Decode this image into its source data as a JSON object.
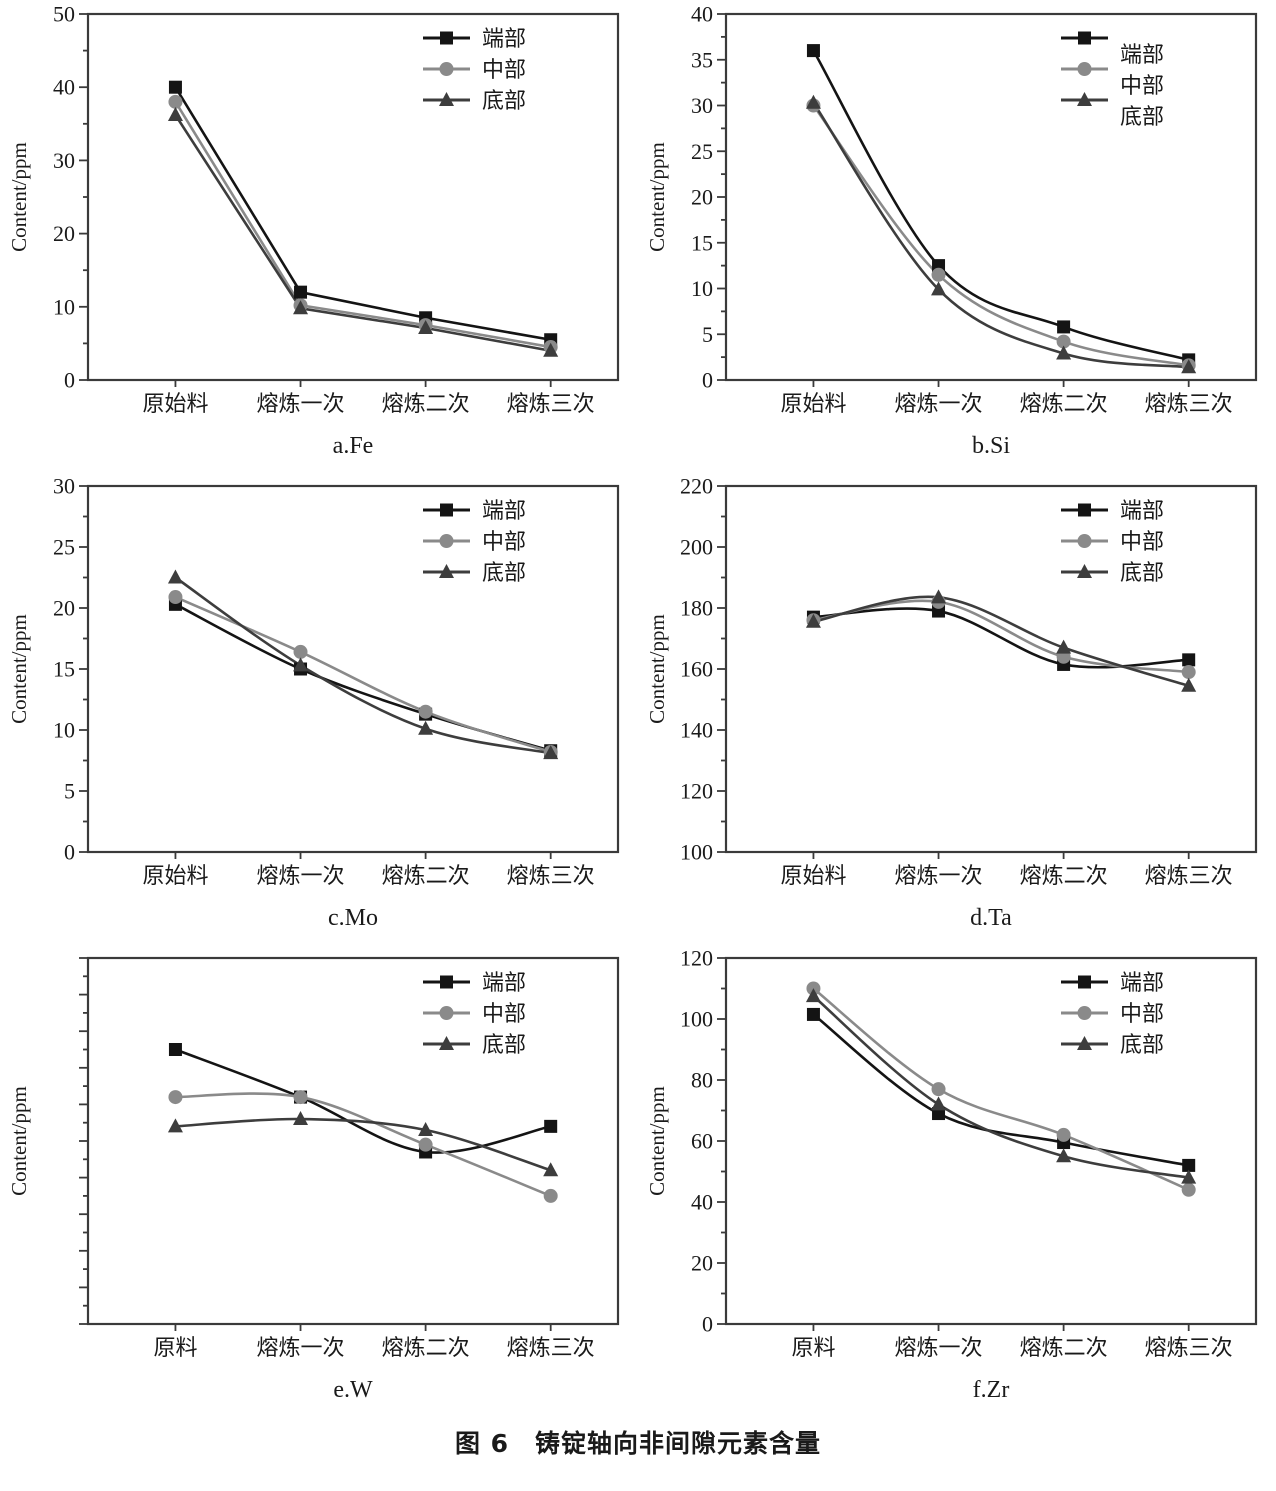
{
  "figure": {
    "caption": "图 6　铸锭轴向非间隙元素含量",
    "ylabel": "Content/ppm",
    "series_colors": {
      "端部": "#141414",
      "中部": "#8a8a8a",
      "底部": "#3d3d3d"
    },
    "series_markers": {
      "端部": "square",
      "中部": "circle",
      "底部": "triangle"
    }
  },
  "chart_data": [
    {
      "id": "a-fe",
      "type": "line",
      "label": "a.Fe",
      "ylabel": "Content/ppm",
      "categories": [
        "原始料",
        "熔炼一次",
        "熔炼二次",
        "熔炼三次"
      ],
      "ylim": [
        0,
        50
      ],
      "ytick_step": 10,
      "yminor_step": 5,
      "show_ytick_labels": true,
      "smooth": false,
      "legend_position": "top-right",
      "legend_label_offset": false,
      "series": [
        {
          "name": "端部",
          "marker": "square",
          "color": "#141414",
          "values": [
            40,
            12,
            8.5,
            5.5
          ]
        },
        {
          "name": "中部",
          "marker": "circle",
          "color": "#8a8a8a",
          "values": [
            38,
            10.2,
            7.5,
            4.5
          ]
        },
        {
          "name": "底部",
          "marker": "triangle",
          "color": "#3d3d3d",
          "values": [
            36.2,
            9.8,
            7.1,
            4.0
          ]
        }
      ]
    },
    {
      "id": "b-si",
      "type": "line",
      "label": "b.Si",
      "ylabel": "Content/ppm",
      "categories": [
        "原始料",
        "熔炼一次",
        "熔炼二次",
        "熔炼三次"
      ],
      "ylim": [
        0,
        40
      ],
      "ytick_step": 5,
      "yminor_step": 2.5,
      "show_ytick_labels": true,
      "smooth": true,
      "legend_position": "top-right",
      "legend_label_offset": true,
      "series": [
        {
          "name": "端部",
          "marker": "square",
          "color": "#141414",
          "values": [
            36,
            12.5,
            5.8,
            2.2
          ]
        },
        {
          "name": "中部",
          "marker": "circle",
          "color": "#8a8a8a",
          "values": [
            30,
            11.5,
            4.2,
            1.6
          ]
        },
        {
          "name": "底部",
          "marker": "triangle",
          "color": "#3d3d3d",
          "values": [
            30.3,
            9.9,
            2.9,
            1.4
          ]
        }
      ]
    },
    {
      "id": "c-mo",
      "type": "line",
      "label": "c.Mo",
      "ylabel": "Content/ppm",
      "categories": [
        "原始料",
        "熔炼一次",
        "熔炼二次",
        "熔炼三次"
      ],
      "ylim": [
        0,
        30
      ],
      "ytick_step": 5,
      "yminor_step": 2.5,
      "show_ytick_labels": true,
      "smooth": true,
      "legend_position": "top-right",
      "legend_label_offset": false,
      "series": [
        {
          "name": "端部",
          "marker": "square",
          "color": "#141414",
          "values": [
            20.3,
            15.0,
            11.3,
            8.3
          ]
        },
        {
          "name": "中部",
          "marker": "circle",
          "color": "#8a8a8a",
          "values": [
            20.9,
            16.4,
            11.5,
            8.2
          ]
        },
        {
          "name": "底部",
          "marker": "triangle",
          "color": "#3d3d3d",
          "values": [
            22.5,
            15.3,
            10.1,
            8.1
          ]
        }
      ]
    },
    {
      "id": "d-ta",
      "type": "line",
      "label": "d.Ta",
      "ylabel": "Content/ppm",
      "categories": [
        "原始料",
        "熔炼一次",
        "熔炼二次",
        "熔炼三次"
      ],
      "ylim": [
        100,
        220
      ],
      "ytick_step": 20,
      "yminor_step": 10,
      "show_ytick_labels": true,
      "smooth": true,
      "legend_position": "top-right",
      "legend_label_offset": false,
      "series": [
        {
          "name": "端部",
          "marker": "square",
          "color": "#141414",
          "values": [
            177,
            179,
            161.5,
            163
          ]
        },
        {
          "name": "中部",
          "marker": "circle",
          "color": "#8a8a8a",
          "values": [
            176,
            182,
            164,
            159
          ]
        },
        {
          "name": "底部",
          "marker": "triangle",
          "color": "#3d3d3d",
          "values": [
            175.5,
            183.5,
            167,
            154.5
          ]
        }
      ]
    },
    {
      "id": "e-w",
      "type": "line",
      "label": "e.W",
      "ylabel": "Content/ppm",
      "categories": [
        "原料",
        "熔炼一次",
        "熔炼二次",
        "熔炼三次"
      ],
      "ylim": [
        0,
        100
      ],
      "ytick_step": 10,
      "yminor_step": 5,
      "show_ytick_labels": false,
      "yaxis_unlabeled": true,
      "values_are_relative_estimates": true,
      "smooth": true,
      "legend_position": "top-right",
      "legend_label_offset": false,
      "series": [
        {
          "name": "端部",
          "marker": "square",
          "color": "#141414",
          "values": [
            75,
            62,
            47,
            54
          ]
        },
        {
          "name": "中部",
          "marker": "circle",
          "color": "#8a8a8a",
          "values": [
            62,
            62,
            49,
            35
          ]
        },
        {
          "name": "底部",
          "marker": "triangle",
          "color": "#3d3d3d",
          "values": [
            54,
            56,
            53,
            42
          ]
        }
      ]
    },
    {
      "id": "f-zr",
      "type": "line",
      "label": "f.Zr",
      "ylabel": "Content/ppm",
      "categories": [
        "原料",
        "熔炼一次",
        "熔炼二次",
        "熔炼三次"
      ],
      "ylim": [
        0,
        120
      ],
      "ytick_step": 20,
      "yminor_step": 10,
      "show_ytick_labels": true,
      "smooth": true,
      "legend_position": "top-right",
      "legend_label_offset": false,
      "series": [
        {
          "name": "端部",
          "marker": "square",
          "color": "#141414",
          "values": [
            101.5,
            69,
            59.5,
            52
          ]
        },
        {
          "name": "中部",
          "marker": "circle",
          "color": "#8a8a8a",
          "values": [
            110,
            77,
            62,
            44
          ]
        },
        {
          "name": "底部",
          "marker": "triangle",
          "color": "#3d3d3d",
          "values": [
            107.5,
            72,
            55,
            48
          ]
        }
      ]
    }
  ]
}
